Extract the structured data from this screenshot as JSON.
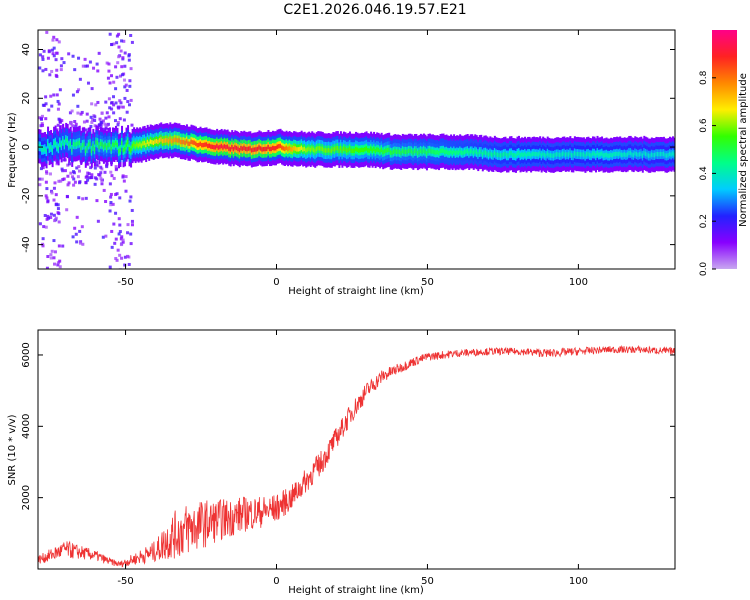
{
  "title": "C2E1.2026.046.19.57.E21",
  "chart_data": [
    {
      "type": "heatmap",
      "name": "spectrogram",
      "xlabel": "Height of straight line (km)",
      "ylabel": "Frequency (Hz)",
      "xlim": [
        -79,
        132
      ],
      "ylim": [
        -50,
        48
      ],
      "xticks": [
        -50,
        0,
        50,
        100
      ],
      "yticks": [
        -40,
        -20,
        0,
        20,
        40
      ],
      "colorbar": {
        "label": "Normalized spectral amplitude",
        "range": [
          0,
          1
        ],
        "ticks": [
          0.0,
          0.2,
          0.4,
          0.6,
          0.8
        ],
        "tick_labels": [
          "0.0",
          "0.2",
          "0.4",
          "0.6",
          "0.8"
        ],
        "colors": [
          "#c8a8f0",
          "#8800ff",
          "#2222ff",
          "#00ccff",
          "#00ff88",
          "#33ff00",
          "#ffee00",
          "#ff8800",
          "#ff2222",
          "#ff0088"
        ]
      },
      "ridge": {
        "x": [
          -79,
          -70,
          -60,
          -52,
          -45,
          -38,
          -30,
          -20,
          -10,
          0,
          10,
          20,
          30,
          40,
          50,
          60,
          75,
          90,
          100,
          110,
          120,
          132
        ],
        "y": [
          -1,
          1,
          0,
          0,
          1,
          3,
          2,
          0,
          -1,
          0,
          -1,
          -1,
          -1,
          -2,
          -2,
          -2,
          -3,
          -3,
          -3,
          -3,
          -3,
          -3
        ],
        "amplitude": [
          0.4,
          0.45,
          0.5,
          0.5,
          0.62,
          0.72,
          0.8,
          0.92,
          0.9,
          0.88,
          0.6,
          0.58,
          0.55,
          0.5,
          0.48,
          0.45,
          0.42,
          0.4,
          0.4,
          0.4,
          0.38,
          0.38
        ]
      },
      "scatter_region": {
        "x_range": [
          -79,
          -48
        ],
        "y_range": [
          -50,
          48
        ],
        "amplitude": 0.15
      }
    },
    {
      "type": "line",
      "name": "snr",
      "xlabel": "Height of straight line (km)",
      "ylabel": "SNR (10 * v/v)",
      "xlim": [
        -79,
        132
      ],
      "ylim": [
        0,
        6700
      ],
      "xticks": [
        -50,
        0,
        50,
        100
      ],
      "yticks": [
        2000,
        4000,
        6000
      ],
      "color": "#ee3333",
      "x": [
        -79,
        -70,
        -60,
        -55,
        -52,
        -48,
        -40,
        -35,
        -30,
        -25,
        -20,
        -15,
        -10,
        -5,
        0,
        5,
        10,
        15,
        20,
        25,
        30,
        35,
        40,
        45,
        50,
        60,
        70,
        80,
        90,
        100,
        110,
        120,
        132
      ],
      "values": [
        250,
        550,
        380,
        200,
        130,
        250,
        500,
        900,
        1100,
        1250,
        1350,
        1450,
        1550,
        1600,
        1700,
        2000,
        2500,
        3000,
        3700,
        4400,
        5000,
        5400,
        5600,
        5800,
        5950,
        6050,
        6100,
        6100,
        6050,
        6100,
        6150,
        6150,
        6100
      ],
      "noise": [
        120,
        250,
        150,
        100,
        80,
        150,
        300,
        650,
        750,
        700,
        600,
        550,
        500,
        450,
        400,
        350,
        350,
        350,
        300,
        300,
        250,
        200,
        150,
        130,
        120,
        110,
        100,
        100,
        120,
        110,
        100,
        100,
        100
      ]
    }
  ]
}
